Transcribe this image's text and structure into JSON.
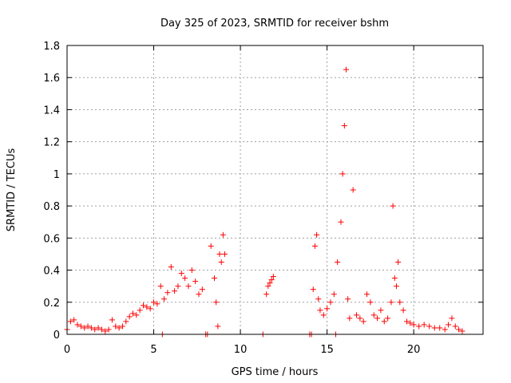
{
  "chart_data": {
    "type": "scatter",
    "title": "Day 325 of 2023, SRMTID for receiver bshm",
    "xlabel": "GPS time / hours",
    "ylabel": "SRMTID / TECUs",
    "xlim": [
      0,
      24
    ],
    "ylim": [
      0,
      1.8
    ],
    "xticks": [
      0,
      5,
      10,
      15,
      20
    ],
    "yticks": [
      0,
      0.2,
      0.4,
      0.6,
      0.8,
      1,
      1.2,
      1.4,
      1.6,
      1.8
    ],
    "grid": true,
    "marker": "+",
    "color": "#ff0000",
    "series": [
      {
        "name": "SRMTID",
        "x": [
          0.0,
          0.2,
          0.4,
          0.6,
          0.8,
          1.0,
          1.2,
          1.4,
          1.6,
          1.8,
          2.0,
          2.2,
          2.4,
          2.6,
          2.8,
          3.0,
          3.2,
          3.4,
          3.6,
          3.8,
          4.0,
          4.2,
          4.4,
          4.6,
          4.8,
          5.0,
          5.2,
          5.4,
          5.6,
          5.8,
          6.0,
          6.2,
          6.4,
          6.6,
          6.8,
          7.0,
          7.2,
          7.4,
          7.6,
          7.8,
          8.1,
          8.3,
          8.5,
          8.6,
          8.7,
          8.8,
          8.9,
          9.0,
          9.1,
          11.5,
          11.6,
          11.7,
          11.8,
          11.9,
          14.1,
          14.2,
          14.3,
          14.4,
          14.5,
          14.6,
          14.8,
          15.0,
          15.2,
          15.4,
          15.6,
          15.8,
          15.9,
          16.0,
          16.1,
          16.2,
          16.3,
          16.5,
          16.7,
          16.9,
          17.1,
          17.3,
          17.5,
          17.7,
          17.9,
          18.1,
          18.3,
          18.5,
          18.7,
          18.8,
          18.9,
          19.0,
          19.1,
          19.2,
          19.4,
          19.6,
          19.8,
          20.0,
          20.3,
          20.6,
          20.9,
          21.2,
          21.5,
          21.8,
          22.0,
          22.2,
          22.4,
          22.6,
          22.8,
          5.5,
          8.0,
          11.3,
          14.0,
          15.5
        ],
        "y": [
          0.03,
          0.08,
          0.09,
          0.06,
          0.05,
          0.04,
          0.05,
          0.04,
          0.03,
          0.04,
          0.03,
          0.02,
          0.03,
          0.09,
          0.05,
          0.04,
          0.05,
          0.08,
          0.11,
          0.13,
          0.12,
          0.15,
          0.18,
          0.17,
          0.16,
          0.2,
          0.19,
          0.3,
          0.22,
          0.26,
          0.42,
          0.27,
          0.3,
          0.38,
          0.35,
          0.3,
          0.4,
          0.33,
          0.25,
          0.28,
          0.0,
          0.55,
          0.35,
          0.2,
          0.05,
          0.5,
          0.45,
          0.62,
          0.5,
          0.25,
          0.3,
          0.32,
          0.34,
          0.36,
          0.0,
          0.28,
          0.55,
          0.62,
          0.22,
          0.15,
          0.12,
          0.16,
          0.2,
          0.25,
          0.45,
          0.7,
          1.0,
          1.3,
          1.65,
          0.22,
          0.1,
          0.9,
          0.12,
          0.1,
          0.08,
          0.25,
          0.2,
          0.12,
          0.1,
          0.15,
          0.08,
          0.1,
          0.2,
          0.8,
          0.35,
          0.3,
          0.45,
          0.2,
          0.15,
          0.08,
          0.07,
          0.06,
          0.05,
          0.06,
          0.05,
          0.04,
          0.04,
          0.03,
          0.06,
          0.1,
          0.05,
          0.03,
          0.02,
          0.0,
          0.0,
          0.0,
          0.0,
          0.0
        ]
      }
    ]
  }
}
